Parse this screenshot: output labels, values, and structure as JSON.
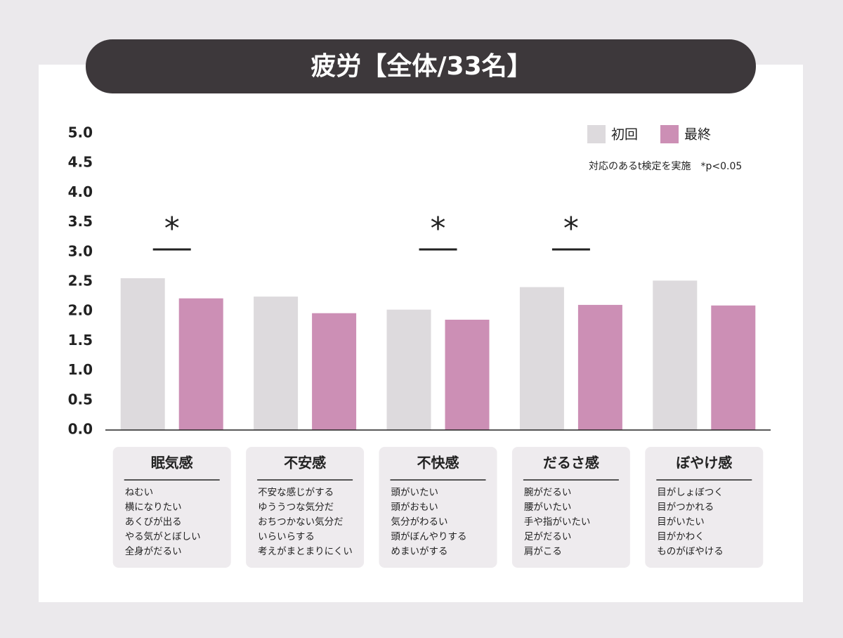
{
  "chart_data": {
    "type": "bar",
    "title": "疲労【全体/33名】",
    "note": "対応のあるt検定を実施　*p<0.05",
    "categories": [
      "眠気感",
      "不安感",
      "不快感",
      "だるさ感",
      "ぼやけ感"
    ],
    "series": [
      {
        "name": "初回",
        "color": "#dddadd",
        "values": [
          2.56,
          2.25,
          2.03,
          2.41,
          2.52
        ]
      },
      {
        "name": "最終",
        "color": "#cc8fb5",
        "values": [
          2.22,
          1.97,
          1.86,
          2.11,
          2.1
        ]
      }
    ],
    "significance": [
      "*",
      null,
      "*",
      "*",
      null
    ],
    "symptoms": [
      [
        "ねむい",
        "横になりたい",
        "あくびが出る",
        "やる気がとぼしい",
        "全身がだるい"
      ],
      [
        "不安な感じがする",
        "ゆううつな気分だ",
        "おちつかない気分だ",
        "いらいらする",
        "考えがまとまりにくい"
      ],
      [
        "頭がいたい",
        "頭がおもい",
        "気分がわるい",
        "頭がぼんやりする",
        "めまいがする"
      ],
      [
        "腕がだるい",
        "腰がいたい",
        "手や指がいたい",
        "足がだるい",
        "肩がこる"
      ],
      [
        "目がしょぼつく",
        "目がつかれる",
        "目がいたい",
        "目がかわく",
        "ものがぼやける"
      ]
    ],
    "ylim": [
      0,
      5
    ],
    "yticks": [
      {
        "value": 0,
        "label": "0.0"
      },
      {
        "value": 0.5,
        "label": "0.5"
      },
      {
        "value": 1,
        "label": "1.0"
      },
      {
        "value": 1.5,
        "label": "1.5"
      },
      {
        "value": 2,
        "label": "2.0"
      },
      {
        "value": 2.5,
        "label": "2.5"
      },
      {
        "value": 3,
        "label": "3.0"
      },
      {
        "value": 3.5,
        "label": "3.5"
      },
      {
        "value": 4,
        "label": "4.0"
      },
      {
        "value": 4.5,
        "label": "4.5"
      },
      {
        "value": 5,
        "label": "5.0"
      }
    ],
    "legend": "top-right"
  }
}
